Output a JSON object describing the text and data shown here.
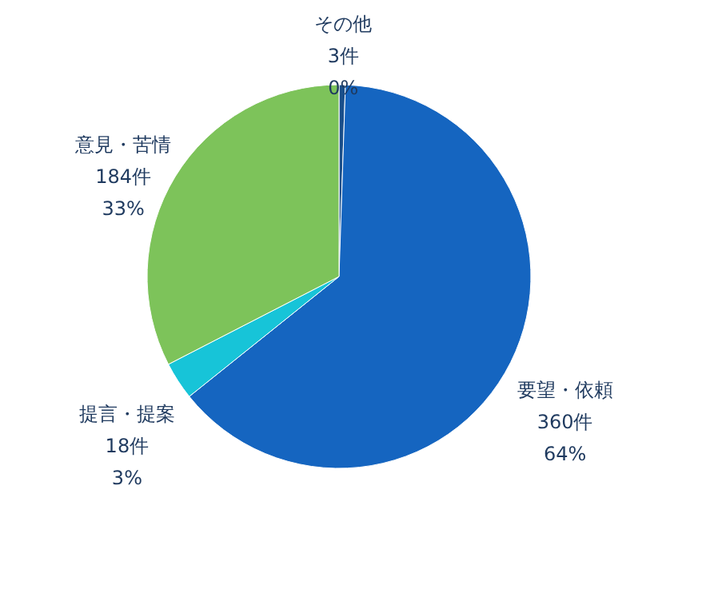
{
  "chart_data": {
    "type": "pie",
    "categories": [
      "その他",
      "要望・依頼",
      "提言・提案",
      "意見・苦情"
    ],
    "values": [
      3,
      360,
      18,
      184
    ],
    "value_labels": [
      "3件\n0%",
      "360件\n64%",
      "18件\n3%",
      "184件\n33%"
    ],
    "colors": [
      "#1a4f8a",
      "#1565c0",
      "#17c4d8",
      "#7dc35a"
    ],
    "legend": false
  }
}
